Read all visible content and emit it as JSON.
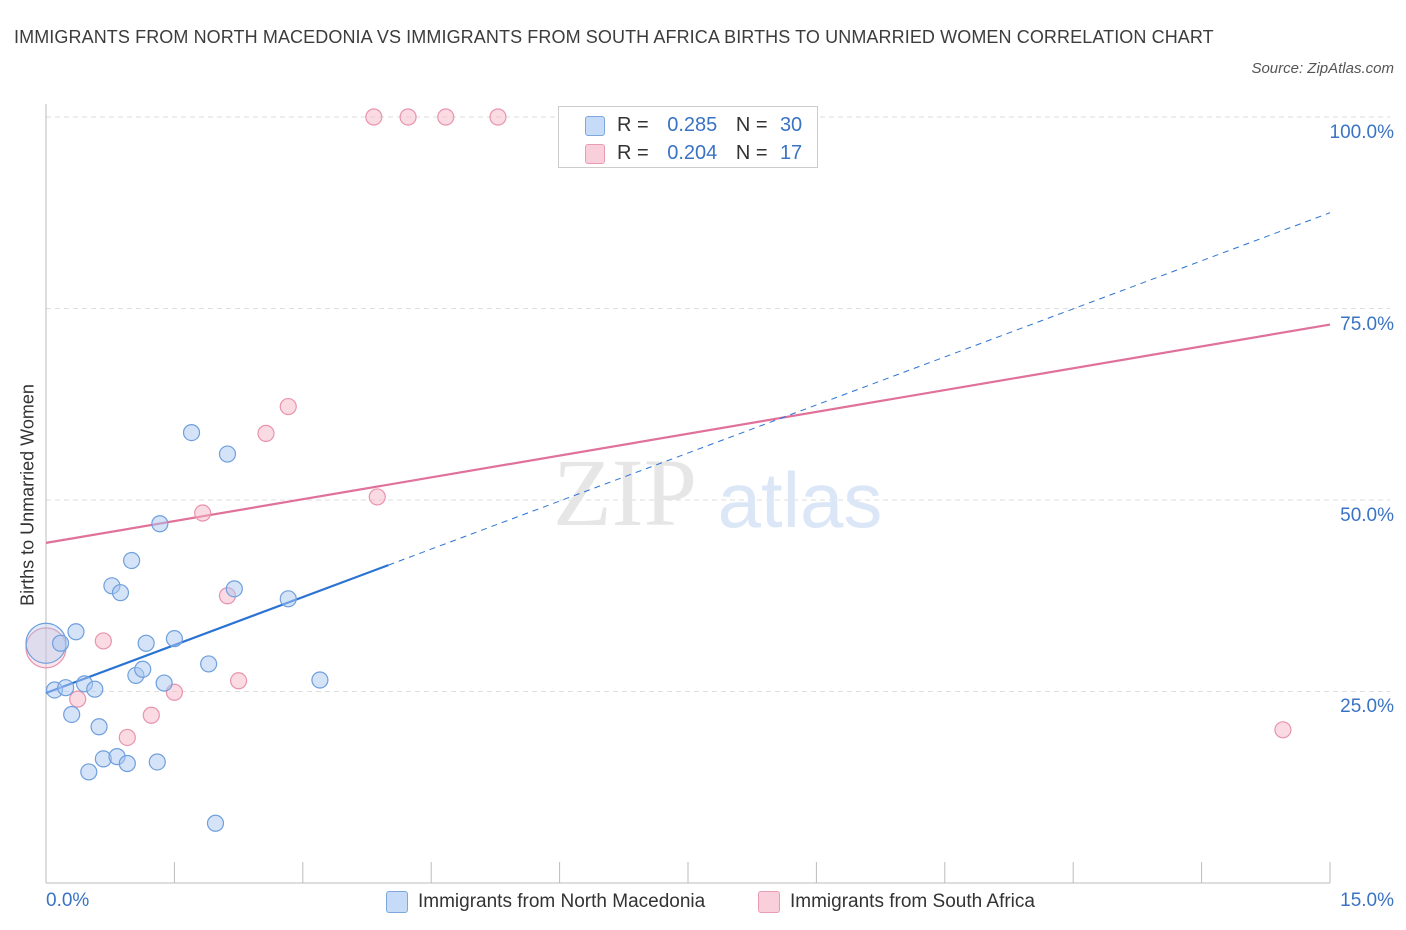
{
  "title": "IMMIGRANTS FROM NORTH MACEDONIA VS IMMIGRANTS FROM SOUTH AFRICA BIRTHS TO UNMARRIED WOMEN CORRELATION CHART",
  "source": "Source: ZipAtlas.com",
  "watermark": {
    "zip": "ZIP",
    "atlas": "atlas"
  },
  "legend": {
    "r_label": "R =",
    "n_label": "N =",
    "entries": [
      {
        "r": "0.285",
        "n": "30",
        "color": "#a9c8f2"
      },
      {
        "r": "0.204",
        "n": "17",
        "color": "#f5b8ca"
      }
    ]
  },
  "chart_data": {
    "type": "scatter",
    "title": "IMMIGRANTS FROM NORTH MACEDONIA VS IMMIGRANTS FROM SOUTH AFRICA BIRTHS TO UNMARRIED WOMEN CORRELATION CHART",
    "xlabel": "",
    "ylabel": "Births to Unmarried Women",
    "xlim": [
      0,
      15
    ],
    "ylim": [
      0,
      100
    ],
    "x_tick_labels": [
      "0.0%",
      "15.0%"
    ],
    "y_ticks": [
      25,
      50,
      75,
      100
    ],
    "y_tick_labels": [
      "25.0%",
      "50.0%",
      "75.0%",
      "100.0%"
    ],
    "grid": true,
    "series": [
      {
        "name": "Immigrants from North Macedonia",
        "color": "#a9c8f2",
        "stroke": "#6f9fdc",
        "trend_color": "#2b73d3",
        "trend": {
          "x0": 0,
          "y0": 24.8,
          "x1": 4.0,
          "y1": 41.5,
          "x_end": 15.0,
          "y_end": 87.5
        },
        "points": [
          {
            "x": 0.0,
            "y": 31.3,
            "big": true
          },
          {
            "x": 0.1,
            "y": 25.2
          },
          {
            "x": 0.17,
            "y": 31.3
          },
          {
            "x": 0.23,
            "y": 25.5
          },
          {
            "x": 0.3,
            "y": 22.0
          },
          {
            "x": 0.35,
            "y": 32.8
          },
          {
            "x": 0.45,
            "y": 26.0
          },
          {
            "x": 0.5,
            "y": 14.5
          },
          {
            "x": 0.57,
            "y": 25.3
          },
          {
            "x": 0.62,
            "y": 20.4
          },
          {
            "x": 0.67,
            "y": 16.2
          },
          {
            "x": 0.77,
            "y": 38.8
          },
          {
            "x": 0.83,
            "y": 16.5
          },
          {
            "x": 0.87,
            "y": 37.9
          },
          {
            "x": 0.95,
            "y": 15.6
          },
          {
            "x": 1.0,
            "y": 42.1
          },
          {
            "x": 1.05,
            "y": 27.1
          },
          {
            "x": 1.13,
            "y": 27.9
          },
          {
            "x": 1.17,
            "y": 31.3
          },
          {
            "x": 1.3,
            "y": 15.8
          },
          {
            "x": 1.33,
            "y": 46.9
          },
          {
            "x": 1.38,
            "y": 26.1
          },
          {
            "x": 1.5,
            "y": 31.9
          },
          {
            "x": 1.7,
            "y": 58.8
          },
          {
            "x": 1.9,
            "y": 28.6
          },
          {
            "x": 1.98,
            "y": 7.8
          },
          {
            "x": 2.12,
            "y": 56.0
          },
          {
            "x": 2.2,
            "y": 38.4
          },
          {
            "x": 2.83,
            "y": 37.1
          },
          {
            "x": 3.2,
            "y": 26.5
          }
        ]
      },
      {
        "name": "Immigrants from South Africa",
        "color": "#f5b8ca",
        "stroke": "#e993ad",
        "trend_color": "#e0719a",
        "trend": {
          "x0": 0,
          "y0": 44.4,
          "x1": 15.0,
          "y1": 72.9
        },
        "points": [
          {
            "x": 0.0,
            "y": 30.7,
            "big": true
          },
          {
            "x": 0.37,
            "y": 24.0
          },
          {
            "x": 0.67,
            "y": 31.6
          },
          {
            "x": 0.95,
            "y": 19.0
          },
          {
            "x": 1.23,
            "y": 21.9
          },
          {
            "x": 1.5,
            "y": 24.9
          },
          {
            "x": 1.83,
            "y": 48.3
          },
          {
            "x": 2.12,
            "y": 37.5
          },
          {
            "x": 2.25,
            "y": 26.4
          },
          {
            "x": 2.57,
            "y": 58.7
          },
          {
            "x": 2.83,
            "y": 62.2
          },
          {
            "x": 3.83,
            "y": 100
          },
          {
            "x": 3.87,
            "y": 50.4
          },
          {
            "x": 4.23,
            "y": 100
          },
          {
            "x": 4.67,
            "y": 100
          },
          {
            "x": 5.28,
            "y": 100
          },
          {
            "x": 14.45,
            "y": 20.0
          }
        ]
      }
    ]
  }
}
